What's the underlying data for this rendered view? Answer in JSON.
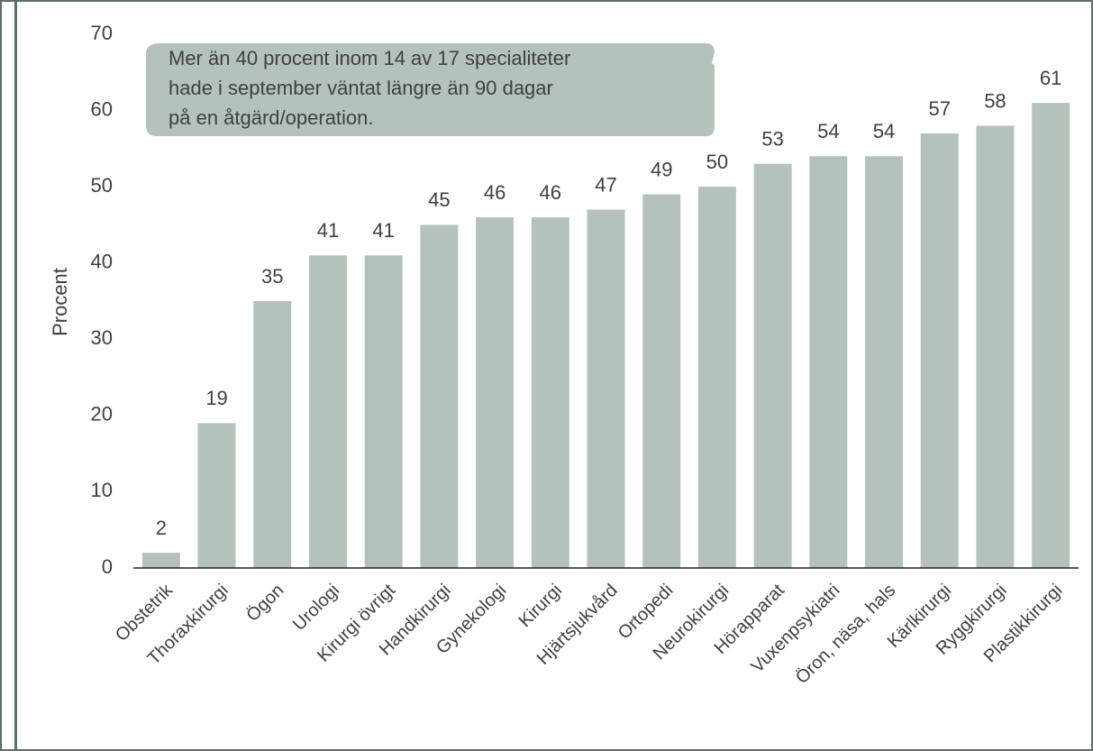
{
  "chart_data": {
    "type": "bar",
    "y_label": "Procent",
    "annotation": [
      "Mer än 40 procent inom 14 av 17 specialiteter",
      "hade i september väntat längre än 90 dagar",
      "på en åtgärd/operation."
    ],
    "categories": [
      "Obstetrik",
      "Thoraxkirurgi",
      "Ögon",
      "Urologi",
      "Kirurgi övrigt",
      "Handkirurgi",
      "Gynekologi",
      "Kirurgi",
      "Hjärtsjukvård",
      "Ortopedi",
      "Neurokirurgi",
      "Hörapparat",
      "Vuxenpsykiatri",
      "Öron, näsa, hals",
      "Kärlkirurgi",
      "Ryggkirurgi",
      "Plastikkirurgi"
    ],
    "values": [
      2,
      19,
      35,
      41,
      41,
      45,
      46,
      46,
      47,
      49,
      50,
      53,
      54,
      54,
      57,
      58,
      61
    ],
    "color": "#b4c2b9",
    "ylim": [
      0,
      70
    ],
    "yticks": [
      0,
      10,
      20,
      30,
      40,
      50,
      60,
      70
    ],
    "grid": false
  }
}
